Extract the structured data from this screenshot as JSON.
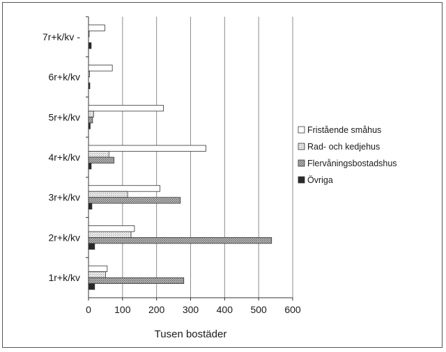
{
  "chart_data": {
    "type": "bar",
    "orientation": "horizontal",
    "title": "",
    "xlabel": "Tusen bostäder",
    "ylabel": "",
    "xlim": [
      0,
      600
    ],
    "xticks": [
      0,
      100,
      200,
      300,
      400,
      500,
      600
    ],
    "grid": "vertical",
    "legend_position": "right",
    "categories": [
      "1r+k/kv",
      "2r+k/kv",
      "3r+k/kv",
      "4r+k/kv",
      "5r+k/kv",
      "6r+k/kv",
      "7r+k/kv -"
    ],
    "series": [
      {
        "name": "Fristående småhus",
        "values": [
          55,
          135,
          210,
          345,
          220,
          70,
          48
        ],
        "color": "#ffffff",
        "pattern": "none"
      },
      {
        "name": "Rad- och kedjehus",
        "values": [
          50,
          125,
          115,
          60,
          15,
          3,
          2
        ],
        "color": "#e6e6e6",
        "pattern": "fine"
      },
      {
        "name": "Flervåningsbostadshus",
        "values": [
          280,
          538,
          270,
          75,
          12,
          0,
          0
        ],
        "color": "#9a9a9a",
        "pattern": "dots"
      },
      {
        "name": "Övriga",
        "values": [
          18,
          18,
          10,
          8,
          5,
          4,
          8
        ],
        "color": "#2a2a2a",
        "pattern": "none"
      }
    ]
  }
}
